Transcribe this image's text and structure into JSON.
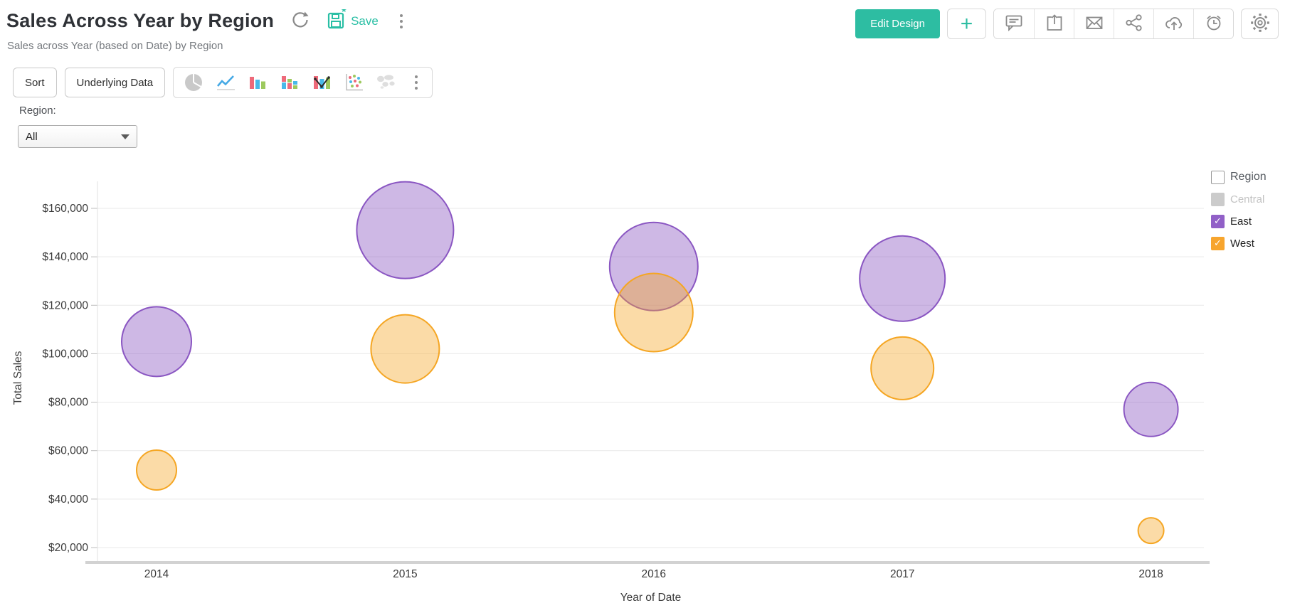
{
  "header": {
    "title": "Sales Across Year by Region",
    "subtitle": "Sales across Year (based on Date) by Region",
    "save_label": "Save",
    "edit_design_label": "Edit Design",
    "add_glyph": "+",
    "accent_color": "#2abfa5",
    "action_icons": [
      "refresh-icon",
      "save-icon",
      "more-options-icon",
      "add-icon",
      "comment-icon",
      "export-icon",
      "email-icon",
      "share-icon",
      "cloud-upload-icon",
      "schedule-icon",
      "settings-icon"
    ]
  },
  "toolbar": {
    "sort_label": "Sort",
    "underlying_data_label": "Underlying Data",
    "chart_types": [
      "pie-chart-icon",
      "line-chart-icon",
      "column-chart-icon",
      "stacked-column-chart-icon",
      "combo-chart-icon",
      "scatter-chart-icon",
      "map-chart-icon"
    ]
  },
  "filter": {
    "label": "Region:",
    "selected_value": "All"
  },
  "legend": {
    "title": "Region",
    "check_glyph": "✓",
    "items": [
      {
        "label": "Central",
        "color": "#cbcbcb",
        "checked": false,
        "enabled": false
      },
      {
        "label": "East",
        "color": "#9160c7",
        "checked": true,
        "enabled": true
      },
      {
        "label": "West",
        "color": "#f7a52e",
        "checked": true,
        "enabled": true
      }
    ]
  },
  "chart_data": {
    "type": "bubble",
    "title": "Sales Across Year by Region",
    "xlabel": "Year of Date",
    "ylabel": "Total Sales",
    "categories": [
      "2014",
      "2015",
      "2016",
      "2017",
      "2018"
    ],
    "ylim": [
      20000,
      160000
    ],
    "y_tick_values": [
      20000,
      40000,
      60000,
      80000,
      100000,
      120000,
      140000,
      160000
    ],
    "y_tick_labels": [
      "$20,000",
      "$40,000",
      "$60,000",
      "$80,000",
      "$100,000",
      "$120,000",
      "$140,000",
      "$160,000"
    ],
    "grid": true,
    "legend_position": "right",
    "series": [
      {
        "name": "East",
        "color": "#8a56c2",
        "fill_opacity": 0.42,
        "stroke_width": 2,
        "values": [
          105000,
          151000,
          136000,
          131000,
          77000
        ],
        "bubble_radius_px": [
          49,
          68,
          62,
          60,
          38
        ]
      },
      {
        "name": "West",
        "color": "#f5a623",
        "fill_opacity": 0.4,
        "stroke_width": 2,
        "values": [
          52000,
          102000,
          117000,
          94000,
          27000
        ],
        "bubble_radius_px": [
          28,
          48,
          55,
          44,
          18
        ]
      }
    ]
  }
}
